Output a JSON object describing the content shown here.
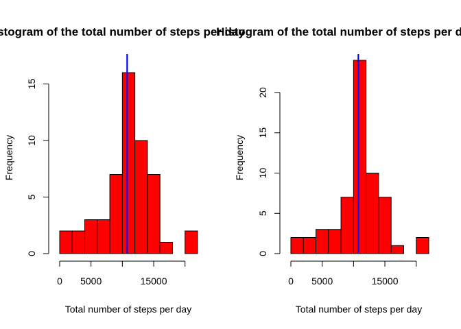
{
  "colors": {
    "bar_fill": "#ff0000",
    "bar_stroke": "#000000",
    "mean_line": "#0000ff",
    "background": "#ffffff"
  },
  "chart_data": [
    {
      "type": "bar",
      "subtype": "histogram",
      "title": "Histogram of the total number of steps per day",
      "xlabel": "Total number of steps per day",
      "ylabel": "Frequency",
      "bin_edges": [
        0,
        2000,
        4000,
        6000,
        8000,
        10000,
        12000,
        14000,
        16000,
        18000,
        20000,
        22000
      ],
      "values": [
        2,
        2,
        3,
        3,
        7,
        16,
        10,
        7,
        1,
        0,
        2
      ],
      "xlim": [
        0,
        22000
      ],
      "ylim": [
        0,
        16
      ],
      "xticks": [
        0,
        5000,
        10000,
        15000,
        20000
      ],
      "xtick_labels": [
        "0",
        "5000",
        "",
        "15000",
        ""
      ],
      "yticks": [
        0,
        5,
        10,
        15
      ],
      "ytick_labels": [
        "0",
        "5",
        "10",
        "15"
      ],
      "mean_line_x": 10766
    },
    {
      "type": "bar",
      "subtype": "histogram",
      "title": "Histogram of the total number of steps per day",
      "xlabel": "Total number of steps per day",
      "ylabel": "Frequency",
      "bin_edges": [
        0,
        2000,
        4000,
        6000,
        8000,
        10000,
        12000,
        14000,
        16000,
        18000,
        20000,
        22000
      ],
      "values": [
        2,
        2,
        3,
        3,
        7,
        24,
        10,
        7,
        1,
        0,
        2
      ],
      "xlim": [
        0,
        22000
      ],
      "ylim": [
        0,
        24
      ],
      "xticks": [
        0,
        5000,
        10000,
        15000,
        20000
      ],
      "xtick_labels": [
        "0",
        "5000",
        "",
        "15000",
        ""
      ],
      "yticks": [
        0,
        5,
        10,
        15,
        20
      ],
      "ytick_labels": [
        "0",
        "5",
        "10",
        "15",
        "20"
      ],
      "mean_line_x": 10766
    }
  ]
}
